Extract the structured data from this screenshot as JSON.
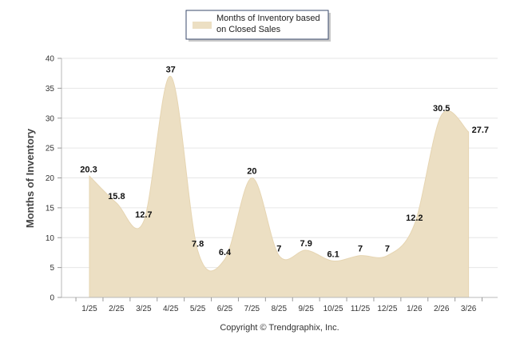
{
  "colors": {
    "area_fill": "#ecdfc3",
    "area_stroke": "#e6d5b2"
  },
  "chart_data": {
    "type": "area",
    "title": "",
    "xlabel": "",
    "ylabel": "Months of Inventory",
    "ylim": [
      0,
      40
    ],
    "yticks": [
      0,
      5,
      10,
      15,
      20,
      25,
      30,
      35,
      40
    ],
    "grid": true,
    "legend_position": "top-center",
    "categories": [
      "1/25",
      "2/25",
      "3/25",
      "4/25",
      "5/25",
      "6/25",
      "7/25",
      "8/25",
      "9/25",
      "10/25",
      "11/25",
      "12/25",
      "1/26",
      "2/26",
      "3/26"
    ],
    "series": [
      {
        "name": "Months of Inventory based on Closed Sales",
        "legend_lines": [
          "Months of Inventory based",
          "on Closed Sales"
        ],
        "values": [
          20.3,
          15.8,
          12.7,
          37,
          7.8,
          6.4,
          20,
          7,
          7.9,
          6.1,
          7,
          7,
          12.2,
          30.5,
          27.7
        ],
        "labels": [
          "20.3",
          "15.8",
          "12.7",
          "37",
          "7.8",
          "6.4",
          "20",
          "7",
          "7.9",
          "6.1",
          "7",
          "7",
          "12.2",
          "30.5",
          "27.7"
        ]
      }
    ],
    "footer": "Copyright © Trendgraphix, Inc."
  }
}
